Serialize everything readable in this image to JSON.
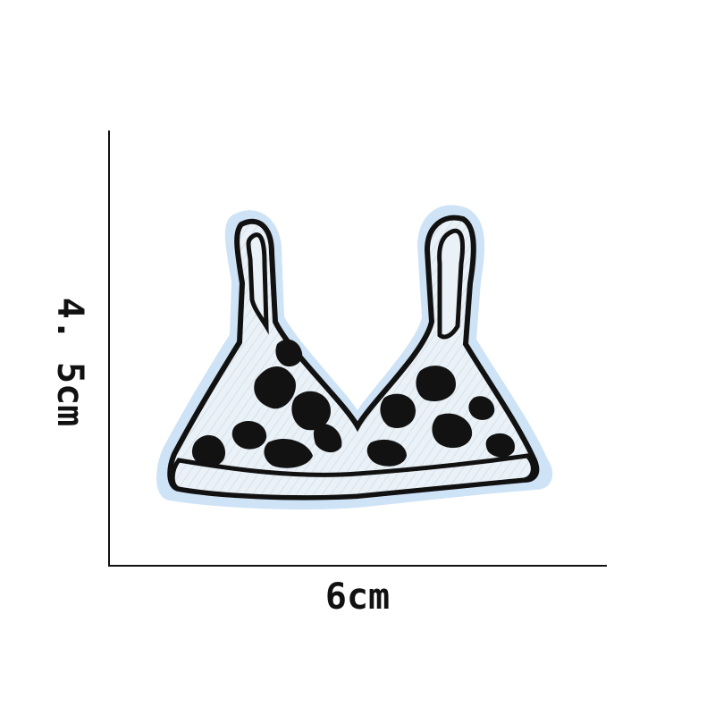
{
  "dimensions": {
    "width_label": "6cm",
    "height_label": "4. 5cm"
  },
  "colors": {
    "outline": "#111111",
    "fabric": "#e9f0f6",
    "edge_glow": "#cfe3f7",
    "ink": "#121212"
  },
  "icons": {
    "patch": "leopard-print-bralette-patch"
  }
}
